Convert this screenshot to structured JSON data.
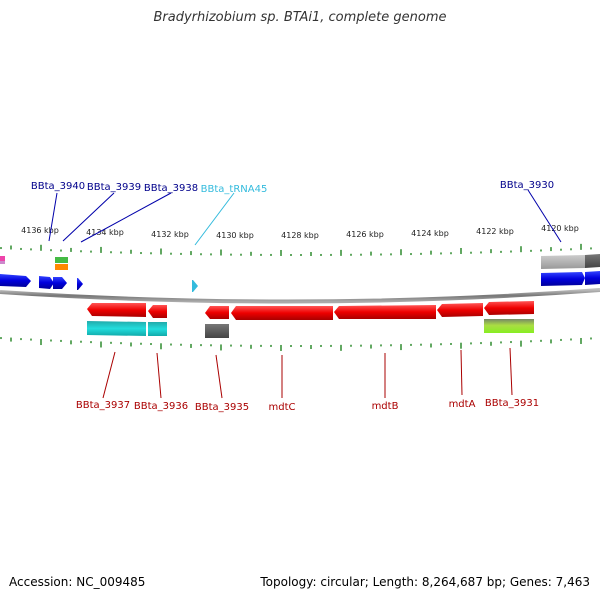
{
  "title": "Bradyrhizobium sp. BTAi1, complete genome",
  "footer": {
    "accession": "Accession: NC_009485",
    "stats": "Topology: circular; Length: 8,264,687 bp; Genes: 7,463"
  },
  "colors": {
    "forward": "#0000dd",
    "reverse": "#ee0000",
    "forward_label": "#00008b",
    "reverse_label": "#aa0000",
    "trna": "#33bbdd",
    "tick": "#2e8b2e",
    "backbone": "#888888",
    "cog_cyan": "#22cccc",
    "cog_gray": "#555555",
    "cog_light_gray": "#aaaaaa",
    "cog_green": "#99dd33",
    "cog_green_orange": "#44bb44",
    "cog_pink": "#ee44aa"
  },
  "scale": {
    "unit": "kbp",
    "ticks": [
      "4136 kbp",
      "4134 kbp",
      "4132 kbp",
      "4130 kbp",
      "4128 kbp",
      "4126 kbp",
      "4124 kbp",
      "4122 kbp",
      "4120 kbp"
    ]
  },
  "forward_labels": [
    "BBta_3940",
    "BBta_3939",
    "BBta_3938",
    "BBta_tRNA45",
    "BBta_3930"
  ],
  "reverse_labels": [
    "BBta_3937",
    "BBta_3936",
    "BBta_3935",
    "mdtC",
    "mdtB",
    "mdtA",
    "BBta_3931"
  ]
}
